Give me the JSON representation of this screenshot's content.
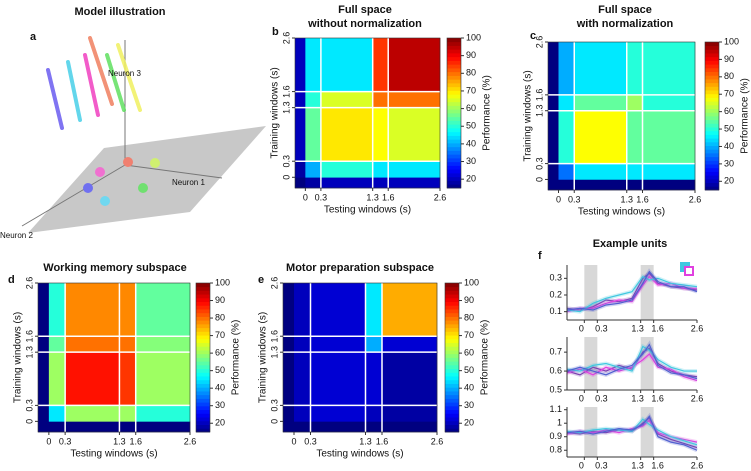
{
  "figure": {
    "a": {
      "label": "a",
      "title": "Model illustration",
      "neuron_labels": [
        "Neuron 1",
        "Neuron 2",
        "Neuron 3"
      ]
    },
    "heatmaps": [
      {
        "label": "b",
        "title": [
          "Full space",
          "without normalization"
        ],
        "xlabel": "Testing windows (s)",
        "ylabel": "Training windows (s)",
        "xlim": [
          -0.2,
          2.6
        ],
        "ylim": [
          -0.2,
          2.6
        ],
        "xticks": [
          0,
          0.3,
          1.3,
          1.6,
          2.6
        ],
        "yticks": [
          0,
          0.3,
          1.3,
          1.6,
          2.6
        ],
        "edges": [
          -0.2,
          0,
          0.3,
          1.3,
          1.6,
          2.6
        ],
        "matrix": [
          [
            15,
            18,
            20,
            20,
            20
          ],
          [
            18,
            40,
            50,
            45,
            45
          ],
          [
            20,
            55,
            70,
            68,
            65
          ],
          [
            20,
            50,
            65,
            80,
            80
          ],
          [
            20,
            45,
            45,
            85,
            95
          ]
        ],
        "clim": [
          15,
          100
        ],
        "cticks": [
          20,
          30,
          40,
          50,
          60,
          70,
          80,
          90,
          100
        ],
        "clabel": "Performance (%)"
      },
      {
        "label": "c",
        "title": [
          "Full space",
          "with normalization"
        ],
        "xlabel": "Testing windows (s)",
        "ylabel": "Training windows (s)",
        "xlim": [
          -0.2,
          2.6
        ],
        "ylim": [
          -0.2,
          2.6
        ],
        "xticks": [
          0,
          0.3,
          1.3,
          1.6,
          2.6
        ],
        "yticks": [
          0,
          0.3,
          1.3,
          1.6,
          2.6
        ],
        "edges": [
          -0.2,
          0,
          0.3,
          1.3,
          1.6,
          2.6
        ],
        "matrix": [
          [
            15,
            15,
            15,
            15,
            15
          ],
          [
            15,
            35,
            45,
            45,
            45
          ],
          [
            15,
            50,
            68,
            55,
            55
          ],
          [
            15,
            45,
            55,
            60,
            50
          ],
          [
            15,
            40,
            45,
            50,
            50
          ]
        ],
        "clim": [
          15,
          100
        ],
        "cticks": [
          20,
          30,
          40,
          50,
          60,
          70,
          80,
          90,
          100
        ],
        "clabel": "Performance (%)"
      },
      {
        "label": "d",
        "title": [
          "Working memory subspace"
        ],
        "xlabel": "Testing windows (s)",
        "ylabel": "Training windows (s)",
        "xlim": [
          -0.2,
          2.6
        ],
        "ylim": [
          -0.2,
          2.6
        ],
        "xticks": [
          0,
          0.3,
          1.3,
          1.6,
          2.6
        ],
        "yticks": [
          0,
          0.3,
          1.3,
          1.6,
          2.6
        ],
        "edges": [
          -0.2,
          0,
          0.3,
          1.3,
          1.6,
          2.6
        ],
        "matrix": [
          [
            15,
            15,
            15,
            15,
            15
          ],
          [
            15,
            45,
            60,
            60,
            50
          ],
          [
            15,
            60,
            88,
            85,
            60
          ],
          [
            15,
            55,
            80,
            80,
            58
          ],
          [
            15,
            50,
            78,
            78,
            55
          ]
        ],
        "clim": [
          15,
          100
        ],
        "cticks": [
          20,
          30,
          40,
          50,
          60,
          70,
          80,
          90,
          100
        ],
        "clabel": "Performance (%)"
      },
      {
        "label": "e",
        "title": [
          "Motor preparation subspace"
        ],
        "xlabel": "Testing windows (s)",
        "ylabel": "Training windows (s)",
        "xlim": [
          -0.2,
          2.6
        ],
        "ylim": [
          -0.2,
          2.6
        ],
        "xticks": [
          0,
          0.3,
          1.3,
          1.6,
          2.6
        ],
        "yticks": [
          0,
          0.3,
          1.3,
          1.6,
          2.6
        ],
        "edges": [
          -0.2,
          0,
          0.3,
          1.3,
          1.6,
          2.6
        ],
        "matrix": [
          [
            15,
            15,
            15,
            15,
            15
          ],
          [
            15,
            20,
            22,
            20,
            18
          ],
          [
            15,
            20,
            22,
            22,
            18
          ],
          [
            15,
            20,
            22,
            40,
            22
          ],
          [
            15,
            20,
            22,
            45,
            75
          ]
        ],
        "clim": [
          15,
          100
        ],
        "cticks": [
          20,
          30,
          40,
          50,
          60,
          70,
          80,
          90,
          100
        ],
        "clabel": "Performance (%)"
      }
    ],
    "f": {
      "label": "f",
      "title": "Example units",
      "x": [
        -0.4,
        -0.1,
        0.2,
        0.5,
        0.8,
        1.1,
        1.35,
        1.5,
        1.7,
        2.0,
        2.3,
        2.6
      ],
      "xlim": [
        -0.4,
        2.6
      ],
      "xticks": [
        0,
        0.3,
        1.3,
        1.6,
        2.6
      ],
      "panels": [
        {
          "ylim": [
            0.05,
            0.38
          ],
          "yticks": [
            0.1,
            0.2,
            0.3
          ],
          "series": [
            {
              "color": "#7b3fb0",
              "values": [
                0.12,
                0.11,
                0.13,
                0.17,
                0.16,
                0.18,
                0.3,
                0.33,
                0.27,
                0.25,
                0.24,
                0.23
              ]
            },
            {
              "color": "#e040e0",
              "values": [
                0.1,
                0.12,
                0.12,
                0.15,
                0.17,
                0.16,
                0.26,
                0.31,
                0.26,
                0.27,
                0.24,
                0.24
              ]
            },
            {
              "color": "#40c8e0",
              "values": [
                0.11,
                0.1,
                0.15,
                0.18,
                0.2,
                0.22,
                0.31,
                0.29,
                0.3,
                0.27,
                0.26,
                0.25
              ]
            },
            {
              "color": "#5060d0",
              "values": [
                0.11,
                0.12,
                0.11,
                0.14,
                0.15,
                0.17,
                0.27,
                0.34,
                0.28,
                0.25,
                0.25,
                0.22
              ]
            }
          ]
        },
        {
          "ylim": [
            0.5,
            0.78
          ],
          "yticks": [
            0.5,
            0.6,
            0.7
          ],
          "series": [
            {
              "color": "#7b3fb0",
              "values": [
                0.6,
                0.58,
                0.62,
                0.6,
                0.63,
                0.61,
                0.7,
                0.72,
                0.64,
                0.6,
                0.58,
                0.57
              ]
            },
            {
              "color": "#e040e0",
              "values": [
                0.59,
                0.61,
                0.58,
                0.62,
                0.6,
                0.62,
                0.66,
                0.69,
                0.62,
                0.61,
                0.57,
                0.55
              ]
            },
            {
              "color": "#40c8e0",
              "values": [
                0.61,
                0.6,
                0.63,
                0.64,
                0.62,
                0.6,
                0.73,
                0.71,
                0.66,
                0.62,
                0.6,
                0.6
              ]
            },
            {
              "color": "#5060d0",
              "values": [
                0.6,
                0.62,
                0.6,
                0.58,
                0.61,
                0.63,
                0.69,
                0.74,
                0.63,
                0.59,
                0.58,
                0.56
              ]
            }
          ]
        },
        {
          "ylim": [
            0.75,
            1.12
          ],
          "yticks": [
            0.8,
            0.9,
            1,
            1.1
          ],
          "series": [
            {
              "color": "#7b3fb0",
              "values": [
                0.93,
                0.92,
                0.94,
                0.93,
                0.95,
                0.94,
                1.0,
                1.04,
                0.92,
                0.88,
                0.85,
                0.82
              ]
            },
            {
              "color": "#e040e0",
              "values": [
                0.92,
                0.94,
                0.93,
                0.95,
                0.93,
                0.96,
                0.98,
                1.02,
                0.93,
                0.9,
                0.88,
                0.86
              ]
            },
            {
              "color": "#40c8e0",
              "values": [
                0.94,
                0.93,
                0.95,
                0.96,
                0.95,
                0.94,
                1.03,
                0.99,
                0.95,
                0.9,
                0.87,
                0.84
              ]
            },
            {
              "color": "#5060d0",
              "values": [
                0.93,
                0.94,
                0.92,
                0.94,
                0.96,
                0.95,
                0.99,
                1.05,
                0.9,
                0.86,
                0.84,
                0.8
              ]
            }
          ]
        }
      ]
    }
  }
}
